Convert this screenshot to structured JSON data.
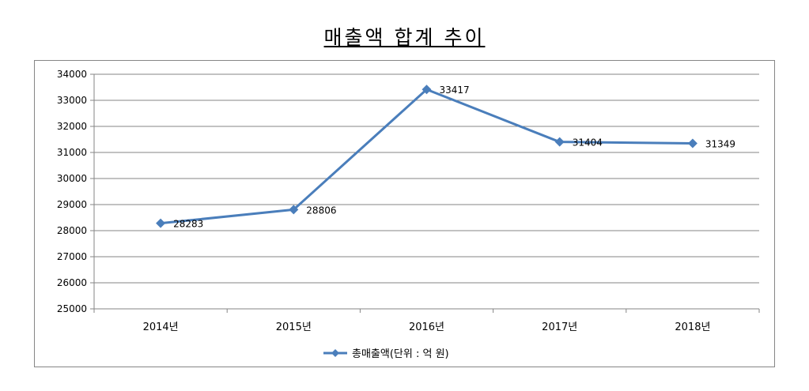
{
  "chart_data": {
    "type": "line",
    "title": "매출액 합계 추이",
    "categories": [
      "2014년",
      "2015년",
      "2016년",
      "2017년",
      "2018년"
    ],
    "series": [
      {
        "name": "총매출액(단위 : 억 원)",
        "values": [
          28283,
          28806,
          33417,
          31404,
          31349
        ],
        "color": "#4a7ebb"
      }
    ],
    "ylim": [
      25000,
      34000
    ],
    "ytick_step": 1000,
    "grid": true,
    "legend": "bottom",
    "data_labels": true
  }
}
